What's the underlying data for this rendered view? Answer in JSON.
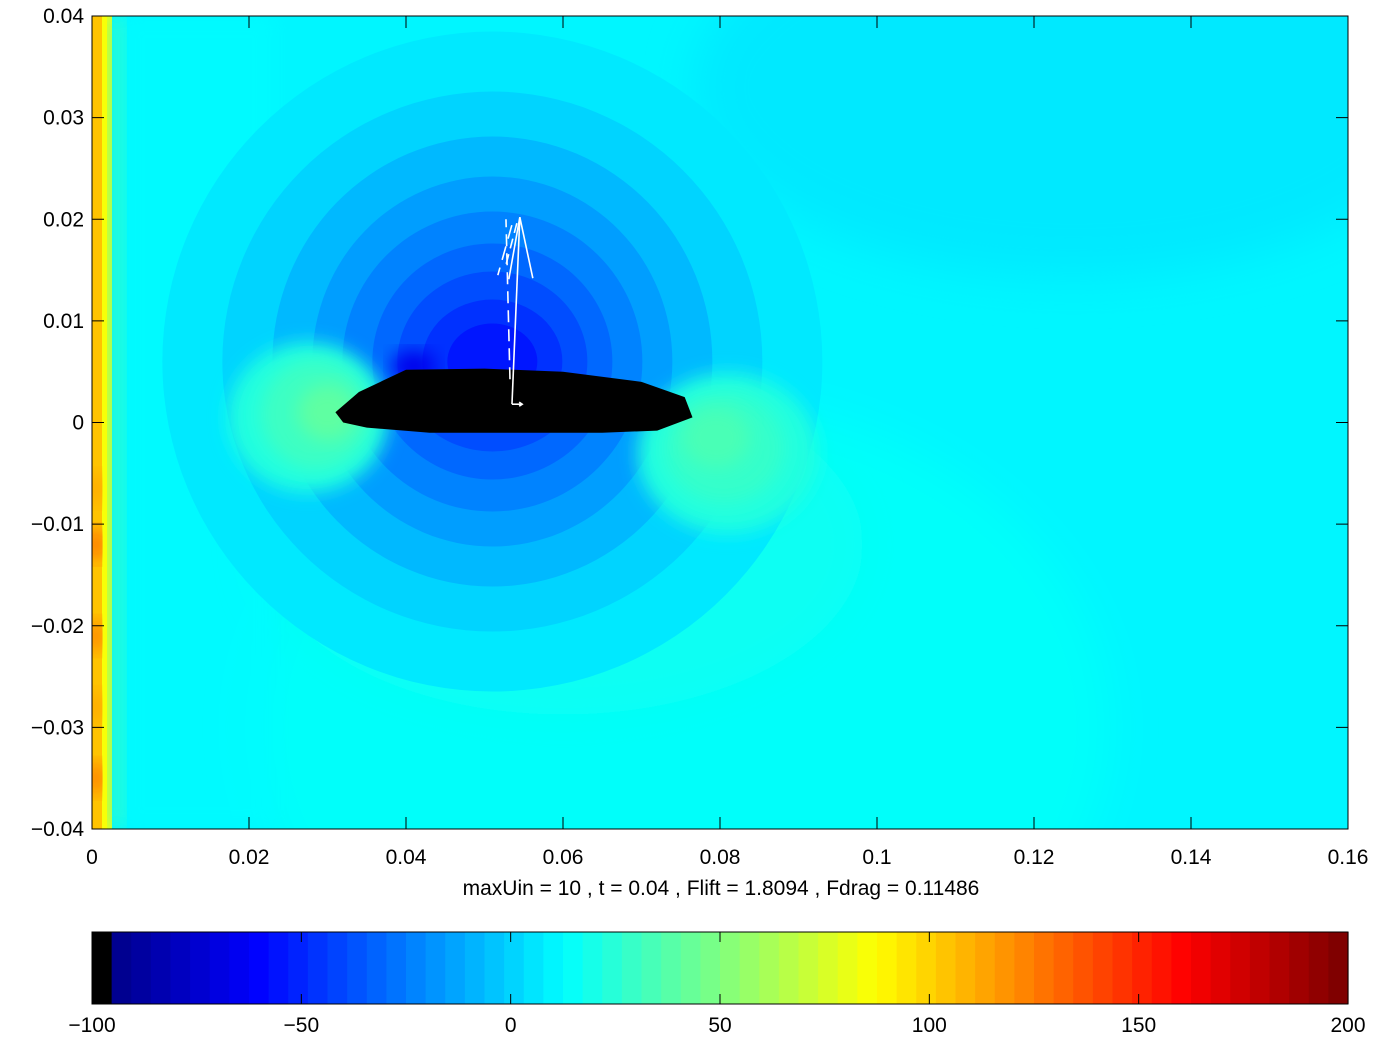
{
  "chart_data": {
    "type": "heatmap",
    "title": "",
    "xlabel": "maxUin = 10 , t = 0.04 , Flift = 1.8094 , Fdrag = 0.11486",
    "ylabel": "",
    "xlim": [
      0,
      0.16
    ],
    "ylim": [
      -0.04,
      0.04
    ],
    "x_ticks": [
      0,
      0.02,
      0.04,
      0.06,
      0.08,
      0.1,
      0.12,
      0.14,
      0.16
    ],
    "x_tick_labels": [
      "0",
      "0.02",
      "0.04",
      "0.06",
      "0.08",
      "0.1",
      "0.12",
      "0.14",
      "0.16"
    ],
    "y_ticks": [
      0.04,
      0.03,
      0.02,
      0.01,
      0,
      -0.01,
      -0.02,
      -0.03,
      -0.04
    ],
    "y_tick_labels": [
      "0.04",
      "0.03",
      "0.02",
      "0.01",
      "0",
      "−0.01",
      "−0.02",
      "−0.03",
      "−0.04"
    ],
    "colorscale": "jet",
    "colorbar": {
      "range": [
        -100,
        200
      ],
      "ticks": [
        -100,
        -50,
        0,
        50,
        100,
        150,
        200
      ],
      "tick_labels": [
        "−100",
        "−50",
        "0",
        "50",
        "100",
        "150",
        "200"
      ],
      "orientation": "horizontal",
      "levels": 64
    },
    "field_description": "pressure field around an airfoil; background about 5 to 15, low pressure above airfoil down to about -60, stagnation highs near leading edge (0.031, 0.001) and trailing edge (0.081, -0.003), inflow boundary at x = 0 reaching about 100 to 150",
    "body": {
      "color": "#000000",
      "outline_data": [
        [
          0.031,
          0.001
        ],
        [
          0.034,
          0.003
        ],
        [
          0.04,
          0.0052
        ],
        [
          0.05,
          0.0053
        ],
        [
          0.06,
          0.005
        ],
        [
          0.07,
          0.004
        ],
        [
          0.0755,
          0.0025
        ],
        [
          0.0765,
          0.0005
        ],
        [
          0.072,
          -0.0008
        ],
        [
          0.065,
          -0.001
        ],
        [
          0.054,
          -0.001
        ],
        [
          0.043,
          -0.001
        ],
        [
          0.035,
          -0.0005
        ],
        [
          0.032,
          0
        ]
      ]
    },
    "force_arrows": {
      "color": "#ffffff",
      "origin": [
        0.0535,
        0.0018
      ],
      "lift_tip": [
        0.0545,
        0.0202
      ],
      "drag_tip": [
        0.0548,
        0.0018
      ]
    }
  }
}
